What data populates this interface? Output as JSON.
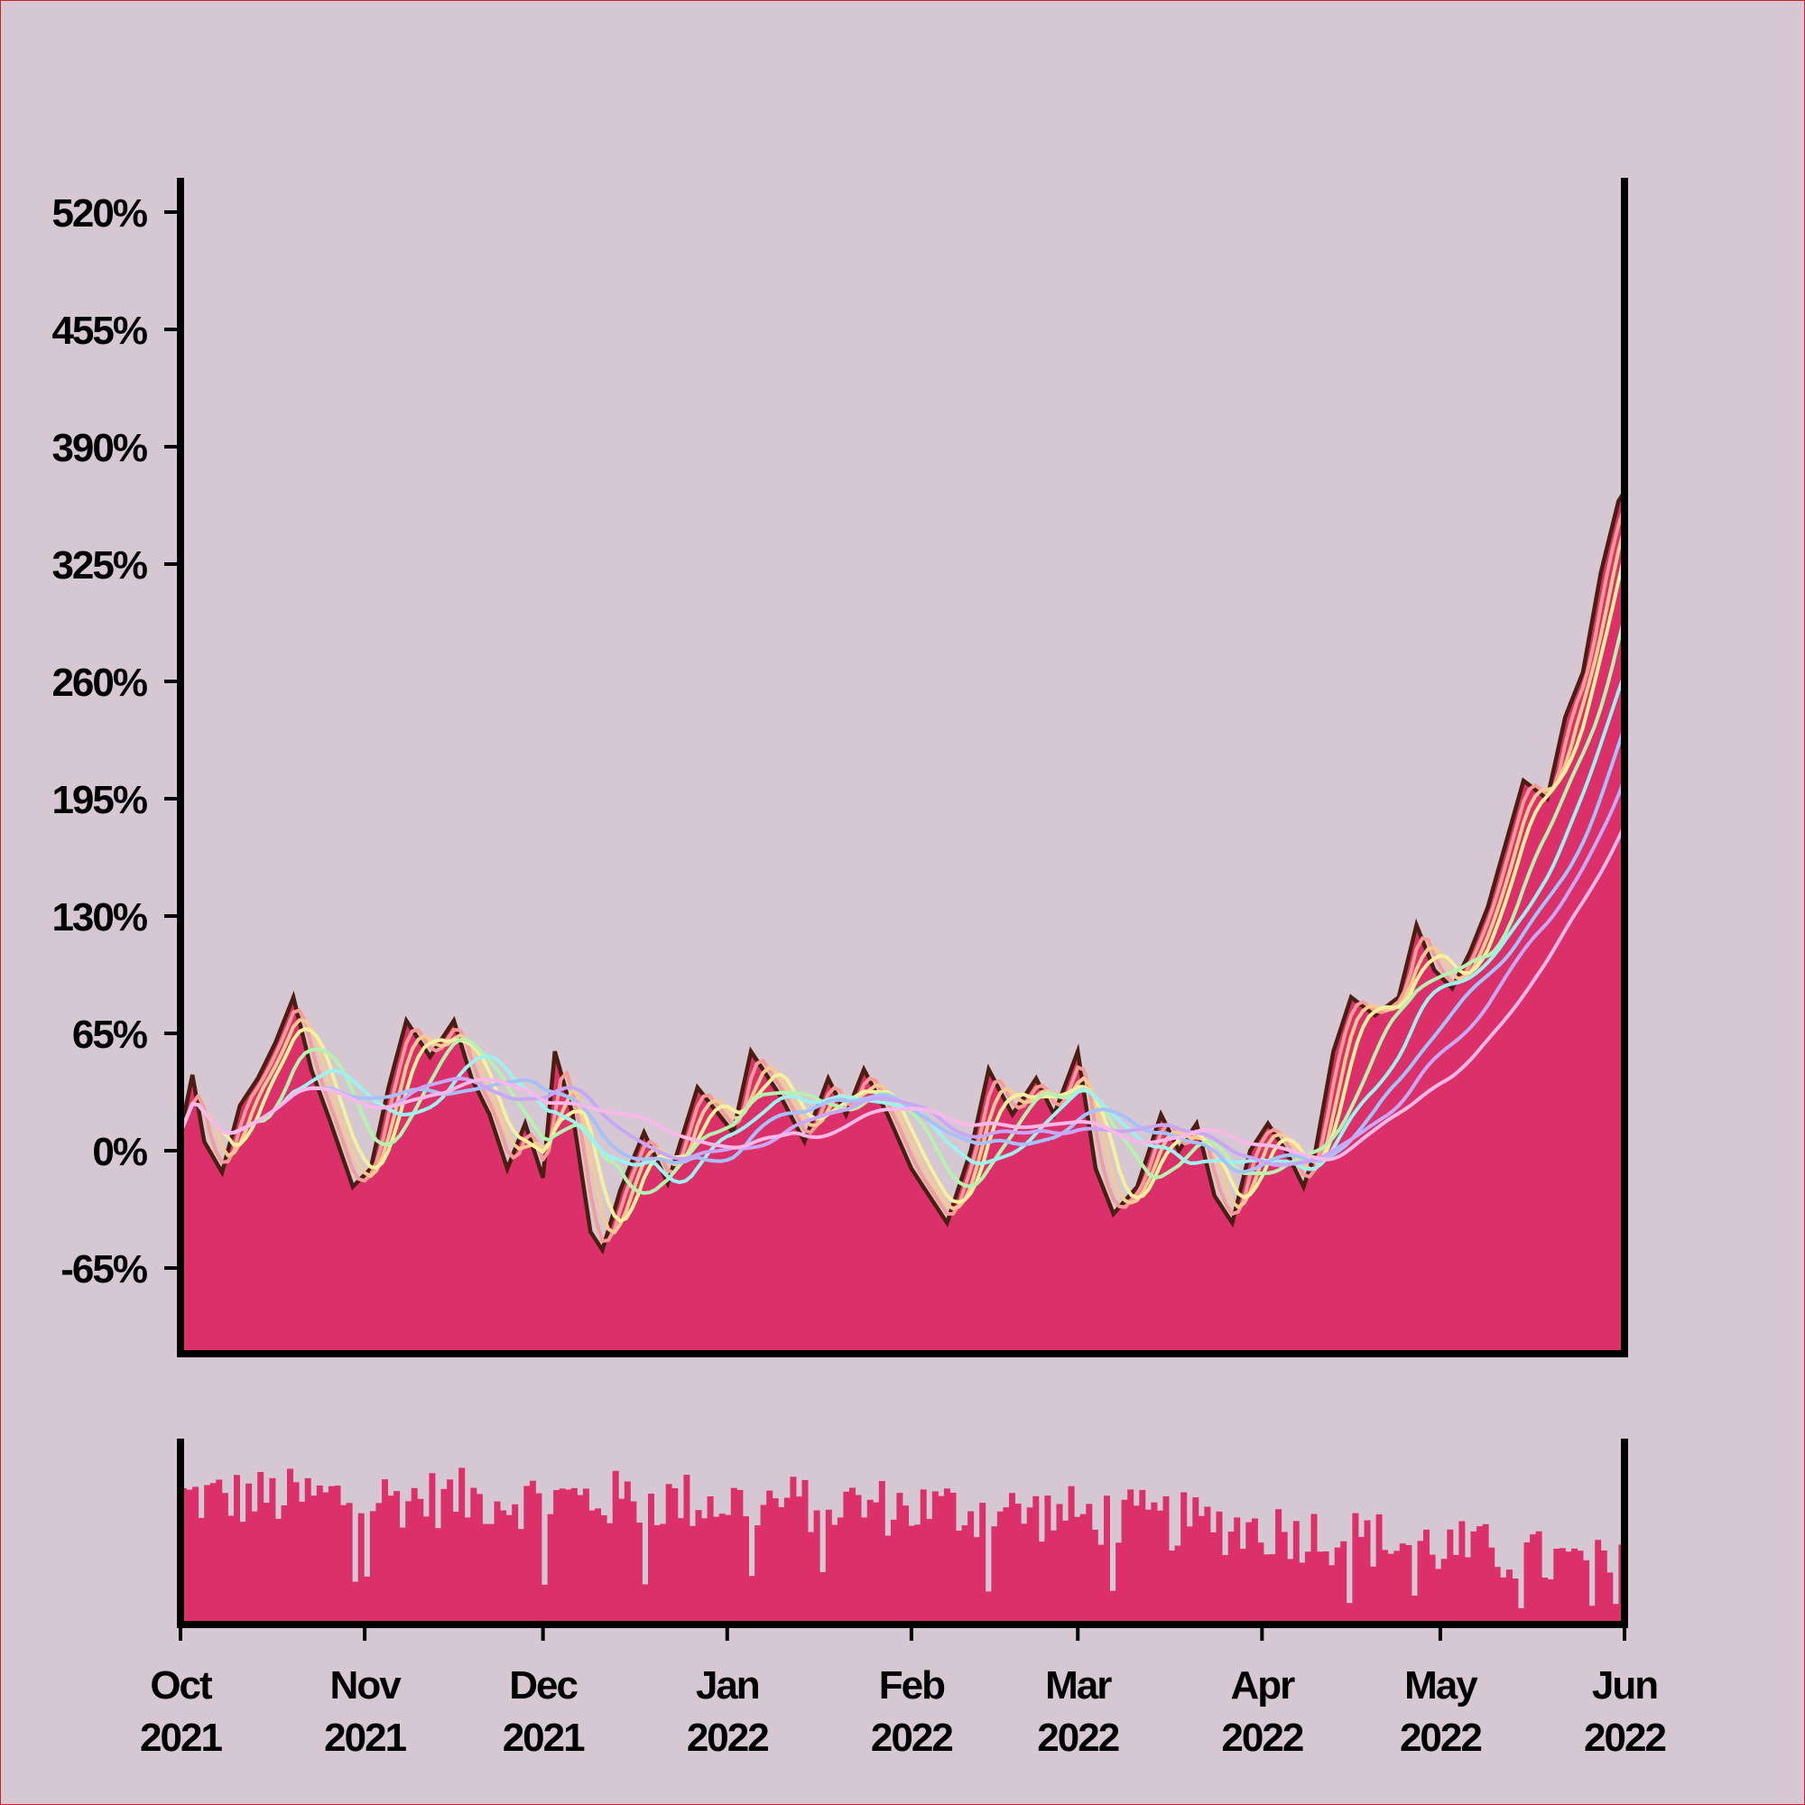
{
  "colors": {
    "background": "#d5c8d2",
    "area_fill": "#dc306a",
    "price_line": "#4a1e10",
    "volume_bars": "#dc306a",
    "axis": "#000000",
    "border": "#c8202c"
  },
  "chart_data": {
    "type": "area",
    "title": "",
    "xlabel": "",
    "ylabel": "",
    "ylim": [
      -110,
      540
    ],
    "yticks": [
      -65,
      0,
      65,
      130,
      195,
      260,
      325,
      390,
      455,
      520
    ],
    "ytick_labels": [
      "-65%",
      "0%",
      "65%",
      "130%",
      "195%",
      "260%",
      "325%",
      "390%",
      "455%",
      "520%"
    ],
    "xlim": [
      "2021-10-01",
      "2022-06-01"
    ],
    "xtick_dates": [
      "2021-10-01",
      "2021-11-01",
      "2021-12-01",
      "2022-01-01",
      "2022-02-01",
      "2022-03-01",
      "2022-04-01",
      "2022-05-01",
      "2022-06-01"
    ],
    "xtick_labels": [
      [
        "Oct",
        "2021"
      ],
      [
        "Nov",
        "2021"
      ],
      [
        "Dec",
        "2021"
      ],
      [
        "Jan",
        "2022"
      ],
      [
        "Feb",
        "2022"
      ],
      [
        "Mar",
        "2022"
      ],
      [
        "Apr",
        "2022"
      ],
      [
        "May",
        "2022"
      ],
      [
        "Jun",
        "2022"
      ]
    ],
    "grid": false,
    "legend": "none",
    "price_keypoints": [
      [
        "2021-10-01",
        10
      ],
      [
        "2021-10-03",
        42
      ],
      [
        "2021-10-05",
        5
      ],
      [
        "2021-10-08",
        -12
      ],
      [
        "2021-10-11",
        25
      ],
      [
        "2021-10-14",
        40
      ],
      [
        "2021-10-17",
        60
      ],
      [
        "2021-10-20",
        85
      ],
      [
        "2021-10-23",
        45
      ],
      [
        "2021-10-26",
        18
      ],
      [
        "2021-10-30",
        -20
      ],
      [
        "2021-11-02",
        -10
      ],
      [
        "2021-11-05",
        35
      ],
      [
        "2021-11-08",
        72
      ],
      [
        "2021-11-12",
        52
      ],
      [
        "2021-11-16",
        72
      ],
      [
        "2021-11-19",
        40
      ],
      [
        "2021-11-22",
        20
      ],
      [
        "2021-11-25",
        -10
      ],
      [
        "2021-11-28",
        15
      ],
      [
        "2021-12-01",
        -15
      ],
      [
        "2021-12-03",
        55
      ],
      [
        "2021-12-06",
        20
      ],
      [
        "2021-12-09",
        -45
      ],
      [
        "2021-12-11",
        -55
      ],
      [
        "2021-12-14",
        -22
      ],
      [
        "2021-12-18",
        10
      ],
      [
        "2021-12-22",
        -18
      ],
      [
        "2021-12-27",
        35
      ],
      [
        "2022-01-02",
        10
      ],
      [
        "2022-01-05",
        55
      ],
      [
        "2022-01-10",
        30
      ],
      [
        "2022-01-14",
        5
      ],
      [
        "2022-01-18",
        40
      ],
      [
        "2022-01-21",
        20
      ],
      [
        "2022-01-24",
        45
      ],
      [
        "2022-01-28",
        20
      ],
      [
        "2022-02-01",
        -10
      ],
      [
        "2022-02-04",
        -25
      ],
      [
        "2022-02-07",
        -40
      ],
      [
        "2022-02-11",
        0
      ],
      [
        "2022-02-14",
        45
      ],
      [
        "2022-02-18",
        20
      ],
      [
        "2022-02-22",
        40
      ],
      [
        "2022-02-25",
        20
      ],
      [
        "2022-03-01",
        55
      ],
      [
        "2022-03-04",
        -10
      ],
      [
        "2022-03-07",
        -35
      ],
      [
        "2022-03-11",
        -20
      ],
      [
        "2022-03-15",
        20
      ],
      [
        "2022-03-18",
        0
      ],
      [
        "2022-03-21",
        15
      ],
      [
        "2022-03-24",
        -25
      ],
      [
        "2022-03-27",
        -40
      ],
      [
        "2022-03-30",
        0
      ],
      [
        "2022-04-02",
        15
      ],
      [
        "2022-04-05",
        0
      ],
      [
        "2022-04-08",
        -20
      ],
      [
        "2022-04-10",
        0
      ],
      [
        "2022-04-13",
        55
      ],
      [
        "2022-04-16",
        85
      ],
      [
        "2022-04-20",
        75
      ],
      [
        "2022-04-24",
        85
      ],
      [
        "2022-04-27",
        125
      ],
      [
        "2022-04-30",
        100
      ],
      [
        "2022-05-03",
        90
      ],
      [
        "2022-05-06",
        110
      ],
      [
        "2022-05-09",
        135
      ],
      [
        "2022-05-12",
        170
      ],
      [
        "2022-05-15",
        205
      ],
      [
        "2022-05-19",
        195
      ],
      [
        "2022-05-22",
        240
      ],
      [
        "2022-05-25",
        265
      ],
      [
        "2022-05-28",
        320
      ],
      [
        "2022-05-31",
        360
      ],
      [
        "2022-06-01",
        365
      ]
    ],
    "moving_average_series": [
      {
        "color": "#f59c96",
        "window_days": 3
      },
      {
        "color": "#f6c896",
        "window_days": 5
      },
      {
        "color": "#f5f0a0",
        "window_days": 7
      },
      {
        "color": "#b8f0b0",
        "window_days": 12
      },
      {
        "color": "#a0f0f0",
        "window_days": 18
      },
      {
        "color": "#a8c0f8",
        "window_days": 25
      },
      {
        "color": "#c8a8f5",
        "window_days": 32
      },
      {
        "color": "#f8b8e8",
        "window_days": 42
      }
    ],
    "volume_panel": {
      "type": "bar",
      "relative_level_start": 0.72,
      "relative_level_end": 0.3
    }
  }
}
